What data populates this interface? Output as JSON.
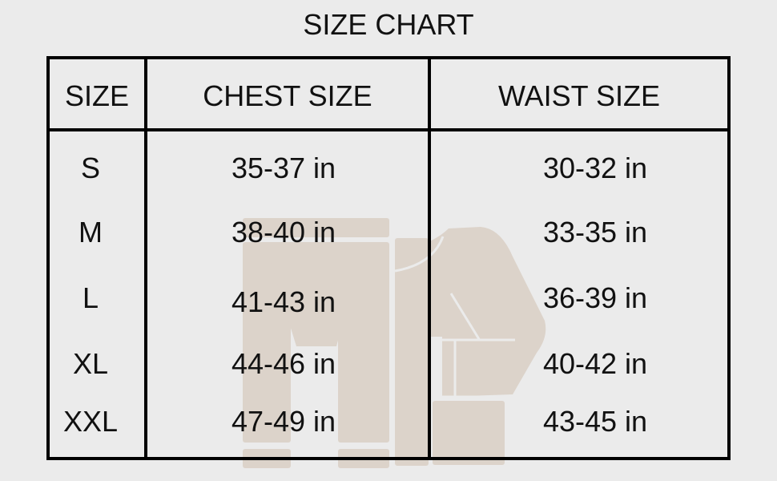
{
  "title": "SIZE CHART",
  "headers": [
    "SIZE",
    "CHEST SIZE",
    "WAIST SIZE"
  ],
  "rows": [
    [
      "S",
      "35-37 in",
      "30-32 in"
    ],
    [
      "M",
      "38-40 in",
      "33-35 in"
    ],
    [
      "L",
      "41-43 in",
      "36-39 in"
    ],
    [
      "XL",
      "44-46 in",
      "40-42 in"
    ],
    [
      "XXL",
      "47-49 in",
      "43-45 in"
    ]
  ],
  "colors": {
    "background": "#ebebeb",
    "watermark": "#dcd3ca",
    "border": "#000000"
  }
}
